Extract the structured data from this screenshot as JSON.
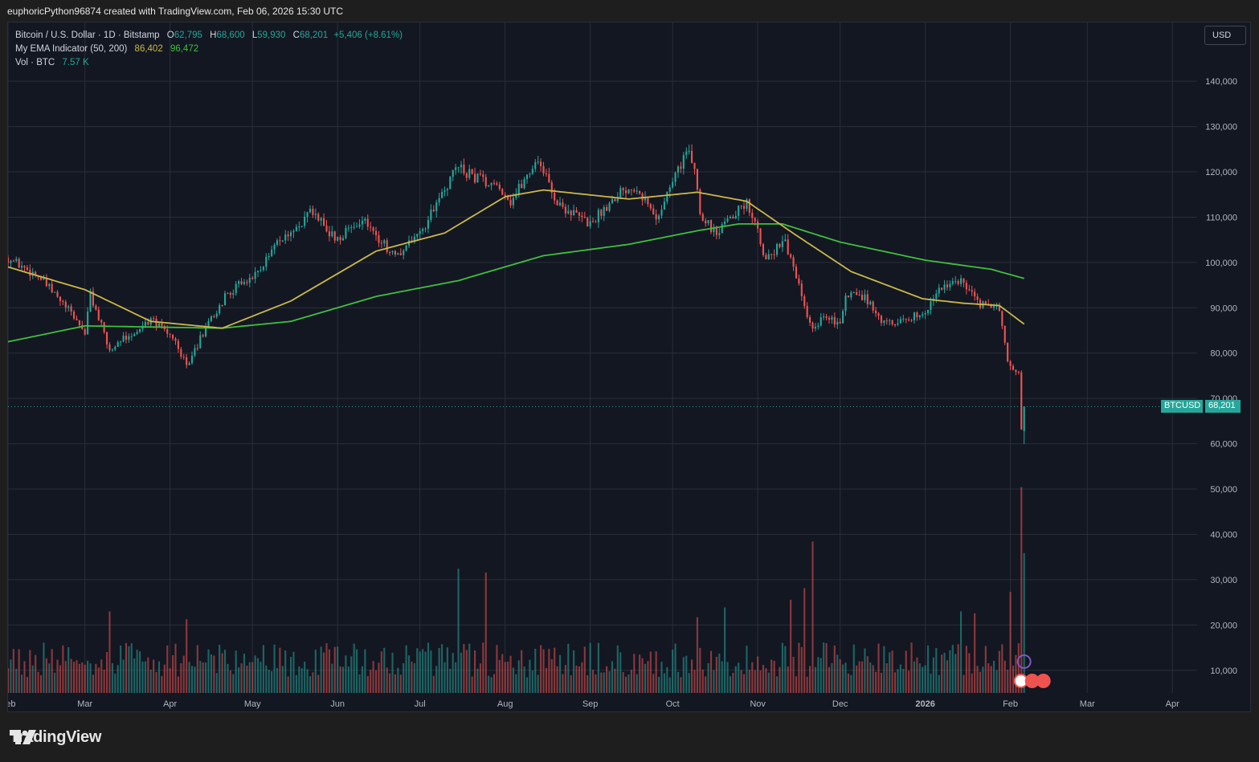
{
  "header": {
    "text": "euphoricPython96874 created with TradingView.com, Feb 06, 2026 15:30 UTC"
  },
  "legend": {
    "symbol": "Bitcoin / U.S. Dollar · 1D · Bitstamp",
    "open_key": "O",
    "open": "62,795",
    "high_key": "H",
    "high": "68,600",
    "low_key": "L",
    "low": "59,930",
    "close_key": "C",
    "close": "68,201",
    "change": "+5,406 (+8.61%)",
    "ema_label": "My EMA Indicator (50, 200)",
    "ema50": "86,402",
    "ema200": "96,472",
    "vol_label": "Vol · BTC",
    "vol_value": "7.57 K"
  },
  "currency_button": "USD",
  "price_tags": {
    "symbol": "BTCUSD",
    "last": "68,201"
  },
  "footer": {
    "logo_text": "TradingView"
  },
  "colors": {
    "up": "#26a69a",
    "down": "#ef5350",
    "ema50": "#c9b847",
    "ema200": "#3fbf3f",
    "bg": "#131722",
    "grid": "#2a2e39"
  },
  "chart_data": {
    "type": "candlestick",
    "y_ticks": [
      "140,000",
      "130,000",
      "120,000",
      "110,000",
      "100,000",
      "90,000",
      "80,000",
      "70,000",
      "60,000",
      "50,000",
      "40,000",
      "30,000",
      "20,000",
      "10,000"
    ],
    "x_ticks": [
      "Feb",
      "Mar",
      "Apr",
      "May",
      "Jun",
      "Jul",
      "Aug",
      "Sep",
      "Oct",
      "Nov",
      "Dec",
      "2026",
      "Feb",
      "Mar",
      "Apr"
    ],
    "x_range": [
      "2025-02-01",
      "2026-04-10"
    ],
    "y_range": [
      5000,
      148000
    ],
    "last_price": 68201,
    "close_anchors": [
      [
        "2025-02-01",
        101000
      ],
      [
        "2025-02-12",
        97000
      ],
      [
        "2025-02-25",
        88000
      ],
      [
        "2025-03-01",
        84500
      ],
      [
        "2025-03-03",
        93000
      ],
      [
        "2025-03-10",
        80500
      ],
      [
        "2025-03-17",
        84000
      ],
      [
        "2025-03-25",
        87500
      ],
      [
        "2025-04-01",
        84000
      ],
      [
        "2025-04-08",
        77000
      ],
      [
        "2025-04-12",
        83500
      ],
      [
        "2025-04-22",
        93500
      ],
      [
        "2025-05-01",
        96500
      ],
      [
        "2025-05-10",
        104000
      ],
      [
        "2025-05-22",
        111000
      ],
      [
        "2025-06-01",
        105000
      ],
      [
        "2025-06-10",
        109500
      ],
      [
        "2025-06-22",
        101000
      ],
      [
        "2025-07-01",
        106500
      ],
      [
        "2025-07-10",
        116000
      ],
      [
        "2025-07-14",
        121000
      ],
      [
        "2025-07-31",
        116000
      ],
      [
        "2025-08-03",
        113500
      ],
      [
        "2025-08-13",
        123000
      ],
      [
        "2025-08-20",
        113000
      ],
      [
        "2025-09-01",
        108500
      ],
      [
        "2025-09-12",
        116000
      ],
      [
        "2025-09-18",
        117000
      ],
      [
        "2025-09-25",
        109500
      ],
      [
        "2025-10-01",
        118000
      ],
      [
        "2025-10-06",
        124500
      ],
      [
        "2025-10-09",
        121000
      ],
      [
        "2025-10-11",
        111000
      ],
      [
        "2025-10-17",
        106000
      ],
      [
        "2025-10-28",
        113500
      ],
      [
        "2025-11-04",
        101000
      ],
      [
        "2025-11-11",
        104500
      ],
      [
        "2025-11-21",
        84500
      ],
      [
        "2025-11-25",
        88500
      ],
      [
        "2025-12-01",
        86500
      ],
      [
        "2025-12-03",
        93000
      ],
      [
        "2025-12-10",
        92500
      ],
      [
        "2025-12-17",
        86500
      ],
      [
        "2025-12-31",
        88500
      ],
      [
        "2026-01-05",
        93500
      ],
      [
        "2026-01-14",
        96500
      ],
      [
        "2026-01-20",
        91000
      ],
      [
        "2026-01-28",
        89500
      ],
      [
        "2026-01-31",
        78500
      ],
      [
        "2026-02-04",
        75000
      ],
      [
        "2026-02-05",
        62800
      ],
      [
        "2026-02-06",
        68201
      ]
    ],
    "ema_anchors": {
      "ema50": [
        [
          "2025-02-01",
          99000
        ],
        [
          "2025-03-01",
          94000
        ],
        [
          "2025-03-25",
          87000
        ],
        [
          "2025-04-20",
          85500
        ],
        [
          "2025-05-15",
          91500
        ],
        [
          "2025-06-15",
          102500
        ],
        [
          "2025-07-10",
          106500
        ],
        [
          "2025-08-01",
          114500
        ],
        [
          "2025-08-15",
          116000
        ],
        [
          "2025-09-15",
          114000
        ],
        [
          "2025-10-10",
          115500
        ],
        [
          "2025-10-28",
          113500
        ],
        [
          "2025-11-15",
          106000
        ],
        [
          "2025-12-05",
          98000
        ],
        [
          "2025-12-31",
          92000
        ],
        [
          "2026-01-15",
          91000
        ],
        [
          "2026-01-28",
          90500
        ],
        [
          "2026-02-06",
          86402
        ]
      ],
      "ema200": [
        [
          "2025-02-01",
          82500
        ],
        [
          "2025-03-01",
          86000
        ],
        [
          "2025-04-20",
          85500
        ],
        [
          "2025-05-15",
          87000
        ],
        [
          "2025-06-15",
          92500
        ],
        [
          "2025-07-15",
          96000
        ],
        [
          "2025-08-15",
          101500
        ],
        [
          "2025-09-15",
          104000
        ],
        [
          "2025-10-10",
          107000
        ],
        [
          "2025-10-25",
          108500
        ],
        [
          "2025-11-10",
          108500
        ],
        [
          "2025-12-01",
          104500
        ],
        [
          "2026-01-01",
          100500
        ],
        [
          "2026-01-25",
          98500
        ],
        [
          "2026-02-06",
          96472
        ]
      ]
    },
    "volume_scale": "K BTC",
    "volume_spikes": [
      [
        "2025-03-10",
        21000
      ],
      [
        "2025-04-07",
        19000
      ],
      [
        "2025-07-15",
        32000
      ],
      [
        "2025-07-25",
        31000
      ],
      [
        "2025-10-10",
        19500
      ],
      [
        "2025-10-20",
        22000
      ],
      [
        "2025-11-13",
        24000
      ],
      [
        "2025-11-21",
        39000
      ],
      [
        "2025-11-18",
        27000
      ],
      [
        "2026-01-14",
        21000
      ],
      [
        "2026-01-19",
        20500
      ],
      [
        "2026-02-01",
        26000
      ],
      [
        "2026-02-05",
        53000
      ],
      [
        "2026-02-06",
        36000
      ]
    ]
  }
}
